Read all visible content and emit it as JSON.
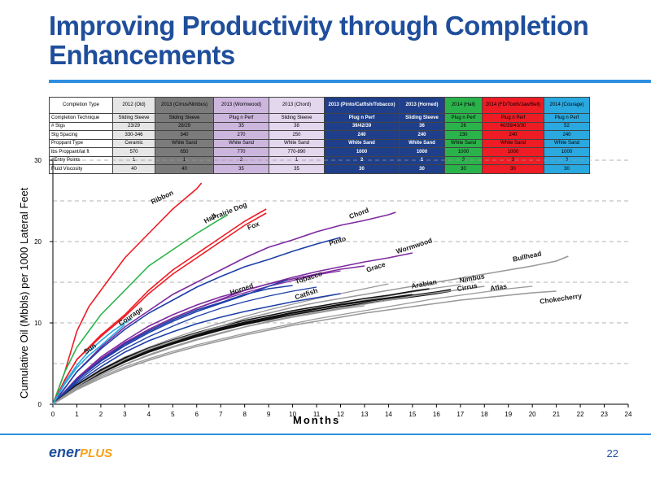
{
  "slide": {
    "title": "Improving Productivity through Completion Enhancements",
    "page_number": "22",
    "logo_main": "ener",
    "logo_accent": "PLUS"
  },
  "table": {
    "headers": [
      "Completion Type",
      "2012 (Old)",
      "2013 (Cirrus/Nimbus)",
      "2013 (Wormwood)",
      "2013 (Chord)",
      "2013 (Pinto/Catfish/Tobacco)",
      "2013 (Horned)",
      "2014 (Hall)",
      "2014 (FD/Tooth/Jaw/Bell)",
      "2014 (Courage)"
    ],
    "rows": [
      [
        "Completion Technique",
        "Sliding Sleeve",
        "Sliding Sleeve",
        "Plug n Perf",
        "Sliding Sleeve",
        "Plug n Perf",
        "Sliding Sleeve",
        "Plug n Perf",
        "Plug n Perf",
        "Plug n Perf"
      ],
      [
        "# Stgs",
        "23/29",
        "28/29",
        "35",
        "38",
        "39/42/39",
        "36",
        "26",
        "40/39/43/30",
        "52"
      ],
      [
        "Stg Spacing",
        "330-346",
        "340",
        "270",
        "250",
        "240",
        "240",
        "230",
        "240",
        "240"
      ],
      [
        "Proppant Type",
        "Ceramic",
        "White Sand",
        "White Sand",
        "White Sand",
        "White Sand",
        "White Sand",
        "White Sand",
        "White Sand",
        "White Sand"
      ],
      [
        "lbs Proppant/lat ft",
        "570",
        "650",
        "770",
        "770-890",
        "1000",
        "1000",
        "1000",
        "1000",
        "1000"
      ],
      [
        "#Entry Points",
        "1",
        "1",
        "2",
        "1",
        "2",
        "1",
        "3",
        "3",
        "3"
      ],
      [
        "Fluid Viscosity",
        "40",
        "40",
        "35",
        "35",
        "30",
        "30",
        "30",
        "30",
        "30"
      ]
    ],
    "column_classes": [
      "c-lbl",
      "c-old",
      "c-cirrus",
      "c-worm",
      "c-chord",
      "c-pinto",
      "c-horned",
      "c-hall",
      "c-ribbon",
      "c-courage"
    ]
  },
  "chart_data": {
    "type": "line",
    "xlabel": "Months",
    "ylabel": "Cumulative Oil (Mbbls) per 1000 Lateral Feet",
    "xlim": [
      0,
      24
    ],
    "ylim": [
      0,
      30
    ],
    "x_ticks": [
      "0",
      "1",
      "2",
      "3",
      "4",
      "5",
      "6",
      "7",
      "8",
      "9",
      "10",
      "11",
      "12",
      "13",
      "14",
      "15",
      "16",
      "17",
      "18",
      "19",
      "20",
      "21",
      "22",
      "23",
      "24"
    ],
    "y_ticks": [
      "0",
      "10",
      "20",
      "30"
    ],
    "grid": "dashed horizontal",
    "series": [
      {
        "name": "Ribbon",
        "color": "#ee1c24",
        "x": [
          0,
          0.5,
          1,
          1.5,
          2,
          2.5,
          3,
          4,
          5,
          6,
          6.2
        ],
        "y": [
          0,
          4,
          9,
          12,
          14,
          16,
          18,
          21,
          24,
          26.5,
          27.2
        ],
        "label_x": 4.6,
        "label_y": 25.2,
        "label_rot": -25
      },
      {
        "name": "Hall",
        "color": "#2bb34b",
        "x": [
          0,
          0.5,
          1,
          1.5,
          2,
          3,
          4,
          5,
          6,
          7,
          7.3
        ],
        "y": [
          0,
          4,
          7,
          9,
          11,
          14,
          17,
          19,
          21,
          22.8,
          23.3
        ],
        "label_x": 6.6,
        "label_y": 22.6,
        "label_rot": -30
      },
      {
        "name": "Prairie Dog",
        "color": "#ee1c24",
        "x": [
          0,
          0.5,
          1,
          2,
          3,
          4,
          5,
          6,
          7,
          8,
          8.9
        ],
        "y": [
          0,
          3,
          5.5,
          8.5,
          11,
          14,
          16.5,
          18.5,
          20.5,
          22.5,
          24
        ],
        "label_x": 7.4,
        "label_y": 23.5,
        "label_rot": -22
      },
      {
        "name": "Fox",
        "color": "#ee1c24",
        "x": [
          0,
          0.5,
          1,
          2,
          3,
          4,
          5,
          6,
          7,
          8,
          8.9
        ],
        "y": [
          0,
          3,
          5.5,
          8.3,
          10.8,
          13.6,
          16,
          18,
          20,
          22,
          23.5
        ],
        "label_x": 8.4,
        "label_y": 21.7,
        "label_rot": -22
      },
      {
        "name": "Chord",
        "color": "#7d2a9e",
        "x": [
          0,
          1,
          2,
          3,
          4,
          5,
          6,
          7,
          8,
          9,
          10,
          11,
          12,
          13,
          14,
          14.3
        ],
        "y": [
          0,
          4,
          7,
          9.5,
          11.5,
          13.5,
          15,
          16.5,
          18,
          19.3,
          20.2,
          21.2,
          22,
          22.6,
          23.3,
          23.6
        ],
        "label_x": 12.8,
        "label_y": 23.2,
        "label_rot": -20
      },
      {
        "name": "Pinto",
        "color": "#1f3fa8",
        "x": [
          0,
          1,
          2,
          3,
          4,
          5,
          6,
          7,
          8,
          9,
          10,
          11,
          12
        ],
        "y": [
          0,
          4,
          6.8,
          9.2,
          11.2,
          12.8,
          14.4,
          15.7,
          16.9,
          17.8,
          18.8,
          19.7,
          20.5
        ],
        "label_x": 11.9,
        "label_y": 19.8,
        "label_rot": -18
      },
      {
        "name": "Wormwood",
        "color": "#7d2a9e",
        "x": [
          0,
          1,
          2,
          3,
          4,
          5,
          6,
          7,
          8,
          9,
          10,
          11,
          12,
          13,
          14,
          15
        ],
        "y": [
          0,
          3,
          5.5,
          7.5,
          9.2,
          10.6,
          11.8,
          12.9,
          14,
          14.8,
          15.6,
          16.3,
          16.9,
          17.5,
          18,
          18.6
        ],
        "label_x": 15.1,
        "label_y": 19.2,
        "label_rot": -18
      },
      {
        "name": "Grace",
        "color": "#7d2a9e",
        "x": [
          0,
          1,
          2,
          3,
          4,
          5,
          6,
          7,
          8,
          9,
          10,
          11,
          12,
          13
        ],
        "y": [
          0,
          3.2,
          5.8,
          7.8,
          9.6,
          11,
          12.2,
          13.2,
          14,
          14.8,
          15.4,
          16,
          16.6,
          17
        ],
        "label_x": 13.5,
        "label_y": 16.6,
        "label_rot": -18
      },
      {
        "name": "Tobacco",
        "color": "#1f3fa8",
        "x": [
          0,
          1,
          2,
          3,
          4,
          5,
          6,
          7,
          8,
          9,
          10
        ],
        "y": [
          0,
          3,
          5.4,
          7.4,
          9,
          10.4,
          11.6,
          12.5,
          13.5,
          14.2,
          14.6
        ],
        "label_x": 10.7,
        "label_y": 15.3,
        "label_rot": -18
      },
      {
        "name": "Horned",
        "color": "#1f3fa8",
        "x": [
          0,
          1,
          2,
          3,
          4,
          5,
          6,
          7,
          8,
          9,
          9.8
        ],
        "y": [
          0,
          3,
          5.3,
          7.2,
          8.8,
          10.2,
          11.4,
          12.4,
          13.4,
          14.5,
          15.3
        ],
        "label_x": 7.9,
        "label_y": 13.9,
        "label_rot": -18
      },
      {
        "name": "Catfish",
        "color": "#1f3fa8",
        "x": [
          0,
          1,
          2,
          3,
          4,
          5,
          6,
          7,
          8,
          9,
          10,
          11,
          12
        ],
        "y": [
          0,
          2.6,
          4.6,
          6.4,
          7.8,
          8.9,
          9.9,
          10.7,
          11.4,
          12,
          12.6,
          13.1,
          13.6
        ],
        "label_x": 10.6,
        "label_y": 13.3,
        "label_rot": -18
      },
      {
        "name": "Arabian",
        "color": "#111111",
        "x": [
          0,
          1,
          2,
          3,
          4,
          5,
          6,
          7,
          8,
          9,
          10,
          11,
          12,
          13,
          14,
          15,
          15.7
        ],
        "y": [
          0,
          2.4,
          4.2,
          5.7,
          6.9,
          7.9,
          8.8,
          9.6,
          10.3,
          10.9,
          11.5,
          12,
          12.5,
          13,
          13.4,
          13.9,
          14.2
        ],
        "label_x": 15.5,
        "label_y": 14.5,
        "label_rot": -10
      },
      {
        "name": "Nimbus",
        "color": "#111111",
        "x": [
          0,
          1,
          2,
          3,
          4,
          5,
          6,
          7,
          8,
          9,
          10,
          11,
          12,
          13,
          14,
          15,
          16,
          16.6
        ],
        "y": [
          0,
          2.3,
          4,
          5.4,
          6.6,
          7.6,
          8.5,
          9.3,
          10,
          10.6,
          11.2,
          11.7,
          12.2,
          12.6,
          13,
          13.4,
          13.8,
          14.1
        ],
        "label_x": 17.5,
        "label_y": 15.2,
        "label_rot": -10
      },
      {
        "name": "Cirrus",
        "color": "#111111",
        "x": [
          0,
          1,
          2,
          3,
          4,
          5,
          6,
          7,
          8,
          9,
          10,
          11,
          12,
          13,
          14,
          15,
          16,
          16.6
        ],
        "y": [
          0,
          2.2,
          3.8,
          5.2,
          6.4,
          7.4,
          8.3,
          9.1,
          9.8,
          10.4,
          11,
          11.5,
          12,
          12.4,
          12.8,
          13.2,
          13.6,
          13.9
        ],
        "label_x": 17.3,
        "label_y": 14.1,
        "label_rot": -10
      },
      {
        "name": "Bullhead",
        "color": "#999999",
        "x": [
          0,
          1,
          2,
          3,
          4,
          5,
          6,
          7,
          8,
          9,
          10,
          11,
          12,
          13,
          14,
          15,
          16,
          17,
          18,
          19,
          20,
          21,
          21.5
        ],
        "y": [
          0,
          2.2,
          4,
          5.5,
          6.8,
          7.8,
          8.7,
          9.6,
          10.5,
          11.2,
          11.9,
          12.5,
          13,
          13.5,
          14,
          14.5,
          15,
          15.5,
          16,
          16.5,
          17,
          17.6,
          18.2
        ],
        "label_x": 19.8,
        "label_y": 17.9,
        "label_rot": -12
      },
      {
        "name": "Atlas",
        "color": "#999999",
        "x": [
          0,
          1,
          2,
          3,
          4,
          5,
          6,
          7,
          8,
          9,
          10,
          11,
          12,
          13,
          14,
          15,
          16,
          17,
          18
        ],
        "y": [
          0,
          2,
          3.6,
          4.9,
          6,
          7,
          7.9,
          8.7,
          9.5,
          10.2,
          10.8,
          11.3,
          11.8,
          12.3,
          12.8,
          13.3,
          13.7,
          14.1,
          14.5
        ],
        "label_x": 18.6,
        "label_y": 14.1,
        "label_rot": -8
      },
      {
        "name": "Chokecherry",
        "color": "#999999",
        "x": [
          0,
          1,
          2,
          3,
          4,
          5,
          6,
          7,
          8,
          9,
          10,
          11,
          12,
          13,
          14,
          15,
          16,
          17,
          18,
          19,
          20,
          21
        ],
        "y": [
          0,
          1.8,
          3.2,
          4.4,
          5.4,
          6.3,
          7.1,
          7.8,
          8.5,
          9.1,
          9.7,
          10.2,
          10.7,
          11.2,
          11.6,
          12,
          12.4,
          12.8,
          13.1,
          13.4,
          13.7,
          13.9
        ],
        "label_x": 21.2,
        "label_y": 12.7,
        "label_rot": -8
      },
      {
        "name": "Sun",
        "color": "#2aa8e0",
        "x": [
          0,
          0.5,
          1,
          1.5,
          2,
          2.5,
          3
        ],
        "y": [
          0,
          2.5,
          4.5,
          6,
          7.2,
          8.5,
          9.8
        ],
        "label_x": 1.6,
        "label_y": 6.6,
        "label_rot": -35
      },
      {
        "name": "Courage",
        "color": "#2aa8e0",
        "x": [
          0,
          0.5,
          1,
          1.5,
          2,
          2.5,
          3,
          3.3
        ],
        "y": [
          0,
          2.7,
          4.8,
          6.5,
          7.8,
          9,
          10,
          10.5
        ],
        "label_x": 3.3,
        "label_y": 10.6,
        "label_rot": -35
      }
    ],
    "background_series": [
      {
        "color": "#999999",
        "x": [
          0,
          1,
          2,
          3,
          4,
          5,
          6,
          7,
          8,
          9,
          10,
          11,
          12,
          13,
          14,
          15,
          16,
          17
        ],
        "y": [
          0,
          2.1,
          3.9,
          5.3,
          6.5,
          7.5,
          8.4,
          9.2,
          9.9,
          10.5,
          11.1,
          11.7,
          12.3,
          12.8,
          13.3,
          13.8,
          14.3,
          14.7
        ]
      },
      {
        "color": "#999999",
        "x": [
          0,
          1,
          2,
          3,
          4,
          5,
          6,
          7,
          8,
          9,
          10,
          11,
          12,
          13,
          14
        ],
        "y": [
          0,
          2.4,
          4.3,
          5.8,
          7,
          8.1,
          9.1,
          10,
          10.8,
          11.6,
          12.3,
          13,
          13.6,
          14.2,
          14.8
        ]
      },
      {
        "color": "#999999",
        "x": [
          0,
          1,
          2,
          3,
          4,
          5,
          6,
          7,
          8,
          9,
          10,
          11,
          12,
          13
        ],
        "y": [
          0,
          2,
          3.6,
          4.9,
          6.1,
          7.1,
          8,
          8.8,
          9.5,
          10.1,
          10.7,
          11.2,
          11.7,
          12.1
        ]
      },
      {
        "color": "#999999",
        "x": [
          0,
          1,
          2,
          3,
          4,
          5,
          6,
          7,
          8,
          9,
          10,
          11,
          12,
          13,
          14,
          15,
          16,
          17,
          18,
          19,
          20
        ],
        "y": [
          0,
          1.9,
          3.4,
          4.6,
          5.6,
          6.5,
          7.3,
          8,
          8.7,
          9.3,
          9.9,
          10.5,
          11,
          11.5,
          12,
          12.5,
          13,
          13.4,
          13.8,
          14.2,
          14.5
        ]
      },
      {
        "color": "#111111",
        "x": [
          0,
          1,
          2,
          3,
          4,
          5,
          6,
          7,
          8,
          9,
          10,
          11,
          12,
          13,
          14,
          15
        ],
        "y": [
          0,
          2.3,
          4.1,
          5.6,
          6.8,
          7.8,
          8.6,
          9.4,
          10.1,
          10.7,
          11.3,
          11.8,
          12.3,
          12.7,
          13.1,
          13.5
        ]
      },
      {
        "color": "#111111",
        "x": [
          0,
          1,
          2,
          3,
          4,
          5,
          6,
          7,
          8,
          9,
          10,
          11,
          12,
          13,
          14
        ],
        "y": [
          0,
          2.2,
          3.9,
          5.3,
          6.5,
          7.5,
          8.4,
          9.2,
          9.9,
          10.5,
          11,
          11.5,
          12,
          12.4,
          12.8
        ]
      },
      {
        "color": "#1f3fa8",
        "x": [
          0,
          1,
          2,
          3,
          4,
          5,
          6,
          7,
          8,
          9,
          10,
          11
        ],
        "y": [
          0,
          2.8,
          5,
          6.8,
          8.3,
          9.6,
          10.8,
          11.8,
          12.6,
          13.3,
          13.9,
          14.4
        ]
      },
      {
        "color": "#7d2a9e",
        "x": [
          0,
          1,
          2,
          3,
          4,
          5,
          6,
          7,
          8,
          9,
          10,
          11,
          12
        ],
        "y": [
          0,
          3.1,
          5.6,
          7.6,
          9.2,
          10.6,
          11.8,
          12.8,
          13.7,
          14.5,
          15.2,
          15.9,
          16.4
        ]
      }
    ]
  }
}
